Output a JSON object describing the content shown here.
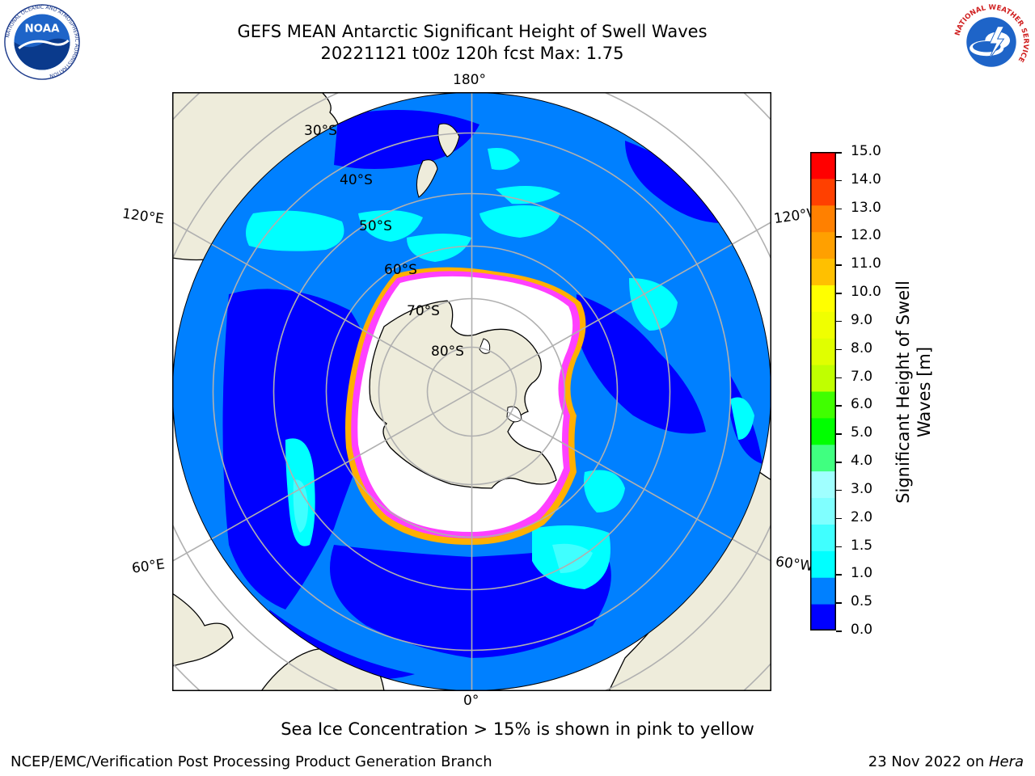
{
  "title": {
    "line1": "GEFS MEAN Antarctic Significant Height of Swell Waves",
    "line2": "20221121 t00z 120h fcst   Max: 1.75"
  },
  "map": {
    "projection": "south-polar-stereographic",
    "longitude_labels": {
      "top": "180°",
      "bottom": "0°",
      "upper_left": "120°E",
      "upper_right": "120°W",
      "lower_left": "60°E",
      "lower_right": "60°W"
    },
    "latitude_labels": [
      "30°S",
      "40°S",
      "50°S",
      "60°S",
      "70°S",
      "80°S"
    ],
    "colors": {
      "land": "#eeecdb",
      "ocean_0_0.5": "#0000ff",
      "ocean_0.5_1.0": "#0080ff",
      "ocean_1.0_1.5": "#00ffff",
      "ocean_1.5_2.0": "#40ffff",
      "ice": "#ffffff",
      "ice_edge_pink": "#ff40ff",
      "ice_edge_yellow": "#ffb000",
      "graticule": "#b0b0b0"
    }
  },
  "colorbar": {
    "label": "Significant Height of Swell Waves [m]",
    "label_line1": "Significant Height of Swell",
    "label_line2": "Waves [m]",
    "ticks": [
      "15.0",
      "14.0",
      "13.0",
      "12.0",
      "11.0",
      "10.0",
      "9.0",
      "8.0",
      "7.0",
      "6.0",
      "5.0",
      "4.0",
      "3.0",
      "2.0",
      "1.5",
      "1.0",
      "0.5",
      "0.0"
    ],
    "bins": [
      {
        "from": 0.0,
        "to": 0.5,
        "color": "#0000ff"
      },
      {
        "from": 0.5,
        "to": 1.0,
        "color": "#0080ff"
      },
      {
        "from": 1.0,
        "to": 1.5,
        "color": "#00ffff"
      },
      {
        "from": 1.5,
        "to": 2.0,
        "color": "#40ffff"
      },
      {
        "from": 2.0,
        "to": 2.5,
        "color": "#80ffff"
      },
      {
        "from": 2.5,
        "to": 3.0,
        "color": "#a0ffff"
      },
      {
        "from": 3.0,
        "to": 4.0,
        "color": "#40ff80"
      },
      {
        "from": 4.0,
        "to": 5.0,
        "color": "#00ff00"
      },
      {
        "from": 5.0,
        "to": 6.0,
        "color": "#40ff00"
      },
      {
        "from": 6.0,
        "to": 7.0,
        "color": "#c0ff00"
      },
      {
        "from": 7.0,
        "to": 8.0,
        "color": "#e0ff00"
      },
      {
        "from": 8.0,
        "to": 9.0,
        "color": "#f0ff00"
      },
      {
        "from": 9.0,
        "to": 10.0,
        "color": "#ffff00"
      },
      {
        "from": 10.0,
        "to": 11.0,
        "color": "#ffc000"
      },
      {
        "from": 11.0,
        "to": 12.0,
        "color": "#ffa000"
      },
      {
        "from": 12.0,
        "to": 13.0,
        "color": "#ff8000"
      },
      {
        "from": 13.0,
        "to": 14.0,
        "color": "#ff4000"
      },
      {
        "from": 14.0,
        "to": 15.0,
        "color": "#ff0000"
      }
    ]
  },
  "note": "Sea Ice Concentration > 15% is shown in pink to yellow",
  "footer": {
    "left": "NCEP/EMC/Verification Post Processing Product Generation Branch",
    "right_date": "23 Nov 2022 on ",
    "right_host": "Hera"
  },
  "logos": {
    "noaa_text": "NOAA",
    "noaa_ring": "NATIONAL OCEANIC AND ATMOSPHERIC ADMINISTRATION",
    "noaa_ring_bottom": "U.S. DEPARTMENT OF COMMERCE",
    "nws_ring": "NATIONAL WEATHER SERVICE"
  }
}
